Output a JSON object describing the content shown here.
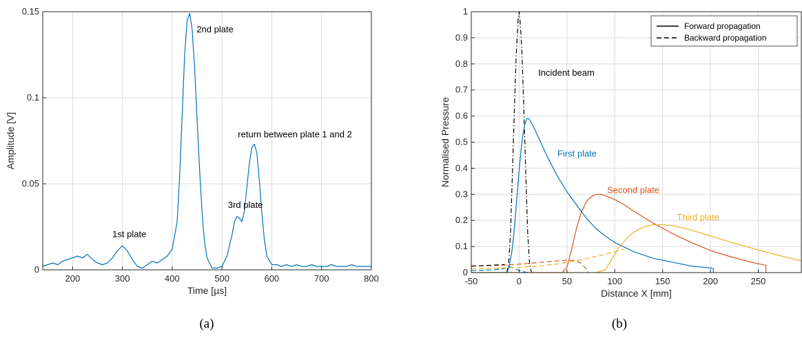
{
  "chart_data": [
    {
      "type": "line",
      "caption": "(a)",
      "xlabel": "Time [µs]",
      "ylabel": "Amplitude [V]",
      "xlim": [
        140,
        800
      ],
      "ylim": [
        0,
        0.15
      ],
      "xticks": [
        200,
        300,
        400,
        500,
        600,
        700,
        800
      ],
      "yticks": [
        0,
        0.05,
        0.1,
        0.15
      ],
      "ytick_labels": [
        "0",
        "0.05",
        "0.1",
        "0.15"
      ],
      "grid": true,
      "colors": {
        "line": "#0072BD"
      },
      "annotations": [
        {
          "text": "1st plate",
          "x": 280,
          "y": 0.019
        },
        {
          "text": "2nd plate",
          "x": 449,
          "y": 0.138
        },
        {
          "text": "3rd plate",
          "x": 512,
          "y": 0.036
        },
        {
          "text": "return between plate 1 and 2",
          "x": 532,
          "y": 0.077
        }
      ],
      "series": [
        {
          "x": [
            140,
            150,
            160,
            170,
            180,
            190,
            200,
            210,
            220,
            230,
            240,
            250,
            260,
            270,
            280,
            290,
            300,
            310,
            320,
            330,
            340,
            350,
            360,
            370,
            380,
            390,
            400,
            410,
            415,
            420,
            425,
            430,
            435,
            440,
            445,
            450,
            455,
            460,
            465,
            470,
            480,
            490,
            500,
            510,
            520,
            525,
            530,
            535,
            540,
            545,
            550,
            555,
            560,
            565,
            570,
            575,
            580,
            585,
            590,
            600,
            610,
            620,
            630,
            640,
            650,
            660,
            670,
            680,
            690,
            700,
            710,
            720,
            730,
            740,
            750,
            760,
            770,
            780,
            790,
            800
          ],
          "y": [
            0.002,
            0.003,
            0.004,
            0.003,
            0.005,
            0.006,
            0.007,
            0.008,
            0.007,
            0.009,
            0.006,
            0.004,
            0.003,
            0.004,
            0.007,
            0.011,
            0.014,
            0.011,
            0.006,
            0.002,
            0.001,
            0.003,
            0.005,
            0.004,
            0.006,
            0.008,
            0.012,
            0.028,
            0.055,
            0.09,
            0.125,
            0.145,
            0.149,
            0.14,
            0.118,
            0.088,
            0.058,
            0.033,
            0.016,
            0.007,
            0.001,
            0.001,
            0.002,
            0.008,
            0.02,
            0.028,
            0.031,
            0.03,
            0.028,
            0.034,
            0.048,
            0.062,
            0.071,
            0.073,
            0.068,
            0.052,
            0.033,
            0.018,
            0.008,
            0.003,
            0.003,
            0.002,
            0.003,
            0.002,
            0.003,
            0.002,
            0.002,
            0.003,
            0.002,
            0.002,
            0.002,
            0.003,
            0.002,
            0.002,
            0.002,
            0.003,
            0.002,
            0.002,
            0.002,
            0.002
          ]
        }
      ]
    },
    {
      "type": "line",
      "caption": "(b)",
      "xlabel": "Distance X [mm]",
      "ylabel": "Normalised Pressure",
      "xlim": [
        -50,
        295
      ],
      "ylim": [
        0,
        1
      ],
      "xticks": [
        -50,
        0,
        50,
        100,
        150,
        200,
        250
      ],
      "yticks": [
        0,
        0.1,
        0.2,
        0.3,
        0.4,
        0.5,
        0.6,
        0.7,
        0.8,
        0.9,
        1
      ],
      "ytick_labels": [
        "0",
        "0.1",
        "0.2",
        "0.3",
        "0.4",
        "0.5",
        "0.6",
        "0.7",
        "0.8",
        "0.9",
        "1"
      ],
      "grid": true,
      "legend": {
        "placement": "top-right",
        "entries": [
          {
            "label": "Forward propagation",
            "style": "solid"
          },
          {
            "label": "Backward propagation",
            "style": "dashed"
          }
        ]
      },
      "annotations": [
        {
          "text": "Incident beam",
          "x": 20,
          "y": 0.755,
          "color": "#000000"
        },
        {
          "text": "First plate",
          "x": 40,
          "y": 0.445,
          "color": "#0072BD"
        },
        {
          "text": "Second plate",
          "x": 92,
          "y": 0.305,
          "color": "#D95319"
        },
        {
          "text": "Third plate",
          "x": 165,
          "y": 0.2,
          "color": "#EDB120"
        }
      ],
      "series": [
        {
          "name": "Incident beam",
          "color": "#000000",
          "style": "dashdot",
          "x": [
            -13,
            -11,
            -9,
            -7,
            -5,
            -3,
            -1,
            0,
            1,
            3,
            5,
            7,
            9,
            11,
            13
          ],
          "y": [
            0,
            0.03,
            0.15,
            0.38,
            0.62,
            0.84,
            0.97,
            1.0,
            0.97,
            0.84,
            0.62,
            0.38,
            0.15,
            0.03,
            0
          ]
        },
        {
          "name": "First plate",
          "color": "#0072BD",
          "style": "solid",
          "x": [
            -50,
            -15,
            -12,
            -10,
            -8,
            -6,
            -4,
            -2,
            0,
            2,
            4,
            6,
            8,
            10,
            12,
            15,
            20,
            30,
            40,
            50,
            60,
            70,
            80,
            90,
            100,
            120,
            140,
            160,
            180,
            200,
            203,
            203
          ],
          "y": [
            0,
            0,
            0.005,
            0.03,
            0.07,
            0.13,
            0.21,
            0.3,
            0.39,
            0.47,
            0.53,
            0.57,
            0.59,
            0.59,
            0.58,
            0.56,
            0.52,
            0.44,
            0.37,
            0.31,
            0.26,
            0.21,
            0.17,
            0.14,
            0.115,
            0.08,
            0.055,
            0.04,
            0.025,
            0.018,
            0.015,
            0
          ]
        },
        {
          "name": "Second plate",
          "color": "#D95319",
          "style": "solid",
          "x": [
            -50,
            45,
            50,
            55,
            60,
            65,
            70,
            75,
            80,
            85,
            90,
            100,
            110,
            120,
            140,
            160,
            180,
            200,
            220,
            240,
            258,
            258
          ],
          "y": [
            0,
            0,
            0.02,
            0.09,
            0.17,
            0.23,
            0.27,
            0.29,
            0.3,
            0.3,
            0.295,
            0.28,
            0.26,
            0.235,
            0.19,
            0.15,
            0.115,
            0.085,
            0.062,
            0.042,
            0.028,
            0
          ]
        },
        {
          "name": "Third plate",
          "color": "#EDB120",
          "style": "solid",
          "x": [
            -50,
            80,
            90,
            95,
            100,
            105,
            110,
            115,
            120,
            130,
            140,
            150,
            160,
            170,
            180,
            200,
            220,
            240,
            260,
            280,
            295
          ],
          "y": [
            0,
            0,
            0.01,
            0.04,
            0.07,
            0.1,
            0.12,
            0.14,
            0.155,
            0.175,
            0.183,
            0.184,
            0.18,
            0.172,
            0.163,
            0.14,
            0.118,
            0.097,
            0.077,
            0.058,
            0.045
          ]
        },
        {
          "name": "First plate backward",
          "color": "#0072BD",
          "style": "dashed",
          "x": [
            -50,
            -30,
            -20,
            -15,
            -12,
            -10,
            -8,
            -5,
            0,
            5,
            8,
            10
          ],
          "y": [
            0.008,
            0.01,
            0.013,
            0.016,
            0.019,
            0.022,
            0.02,
            0.016,
            0.008,
            0.003,
            0.001,
            0
          ]
        },
        {
          "name": "Second plate backward",
          "color": "#D95319",
          "style": "dashed",
          "x": [
            -50,
            -30,
            -10,
            10,
            30,
            50,
            60,
            65,
            70,
            72
          ],
          "y": [
            0.025,
            0.027,
            0.03,
            0.035,
            0.042,
            0.048,
            0.045,
            0.035,
            0.015,
            0
          ]
        },
        {
          "name": "Third plate backward",
          "color": "#EDB120",
          "style": "dashed",
          "x": [
            -50,
            -20,
            0,
            20,
            40,
            60,
            80,
            95,
            105,
            110
          ],
          "y": [
            0.015,
            0.017,
            0.02,
            0.025,
            0.033,
            0.045,
            0.062,
            0.075,
            0.085,
            0.09
          ]
        },
        {
          "name": "Black backward",
          "color": "#000000",
          "style": "dashed",
          "x": [
            -50,
            -30,
            -20,
            -15
          ],
          "y": [
            0.025,
            0.028,
            0.03,
            0.031
          ]
        }
      ]
    }
  ]
}
